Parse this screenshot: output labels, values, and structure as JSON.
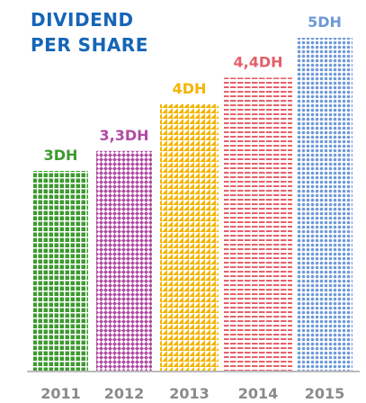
{
  "chart_data": {
    "type": "bar",
    "title": "DIVIDEND PER SHARE",
    "categories": [
      "2011",
      "2012",
      "2013",
      "2014",
      "2015"
    ],
    "values": [
      3,
      3.3,
      4,
      4.4,
      5
    ],
    "value_labels": [
      "3DH",
      "3,3DH",
      "4DH",
      "4,4DH",
      "5DH"
    ],
    "colors": [
      "#3d9a2f",
      "#b04ba3",
      "#f4b400",
      "#e5606a",
      "#6e9ad6"
    ]
  }
}
